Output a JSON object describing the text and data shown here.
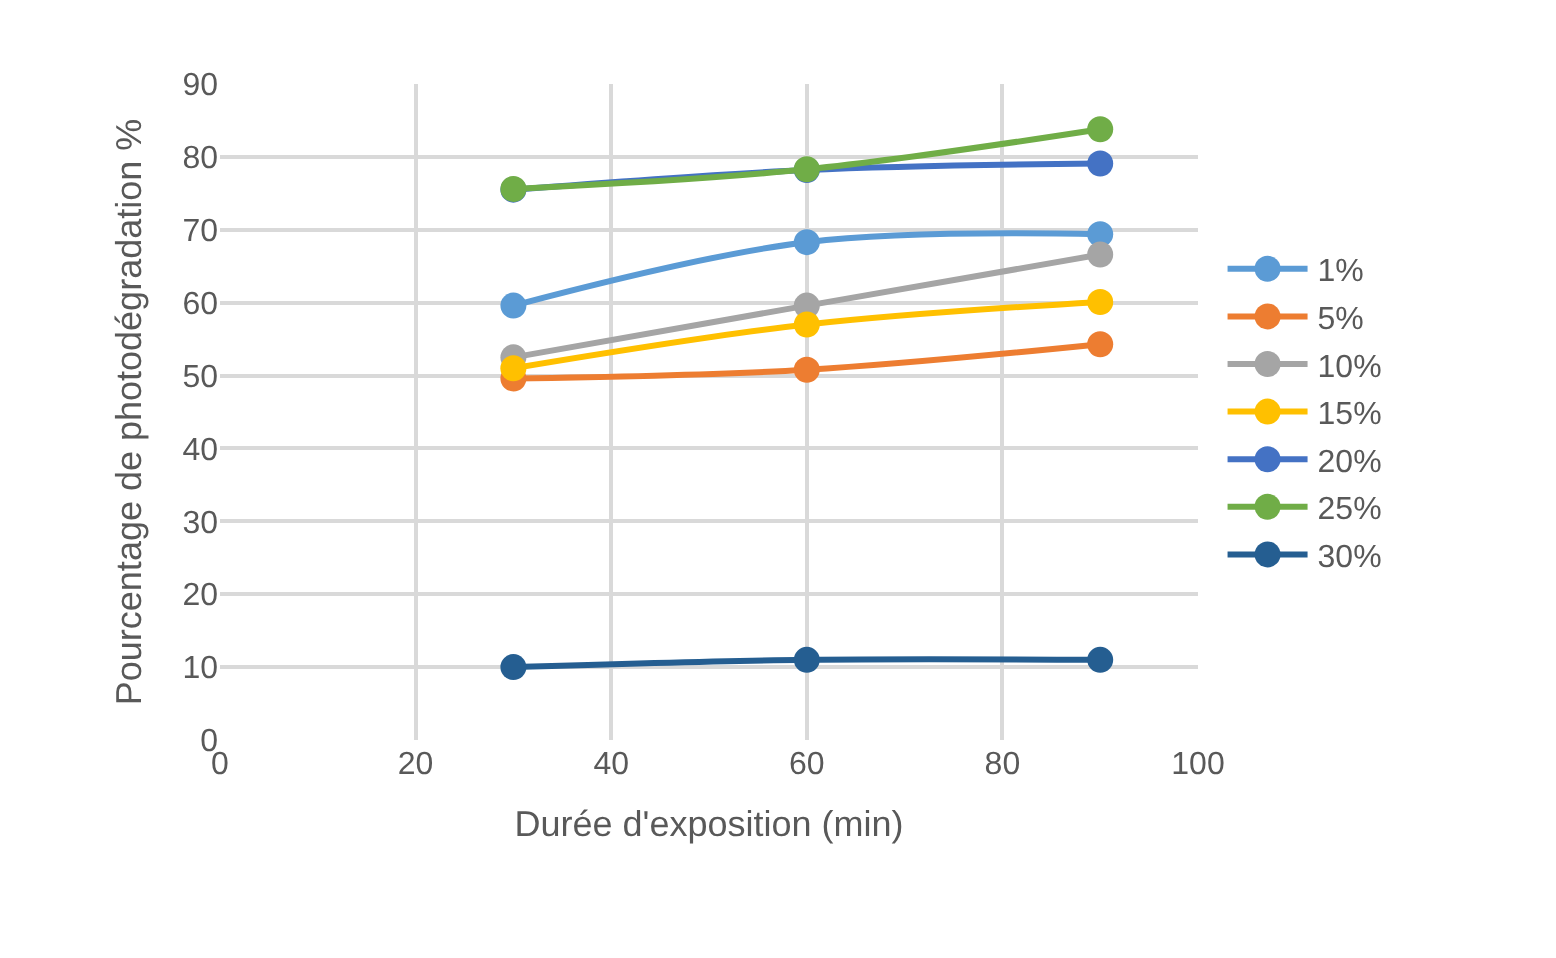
{
  "chart_data": {
    "type": "line",
    "xlabel": "Durée d'exposition (min)",
    "ylabel": "Pourcentage de photodégradation %",
    "x": [
      30,
      60,
      90
    ],
    "series": [
      {
        "name": "1%",
        "color": "#5b9bd5",
        "values": [
          59.6,
          68.3,
          69.4
        ]
      },
      {
        "name": "5%",
        "color": "#ed7d31",
        "values": [
          49.6,
          50.8,
          54.3
        ]
      },
      {
        "name": "10%",
        "color": "#a5a5a5",
        "values": [
          52.5,
          59.6,
          66.6
        ]
      },
      {
        "name": "15%",
        "color": "#ffc000",
        "values": [
          51,
          57,
          60.1
        ]
      },
      {
        "name": "20%",
        "color": "#4472c4",
        "values": [
          75.5,
          78.2,
          79.1
        ]
      },
      {
        "name": "25%",
        "color": "#70ad47",
        "values": [
          75.6,
          78.3,
          83.8
        ]
      },
      {
        "name": "30%",
        "color": "#255e91",
        "values": [
          10,
          11,
          11
        ]
      }
    ],
    "xlim": [
      0,
      100
    ],
    "xticks": [
      0,
      20,
      40,
      60,
      80,
      100
    ],
    "ylim": [
      0,
      90
    ],
    "yticks": [
      0,
      10,
      20,
      30,
      40,
      50,
      60,
      70,
      80,
      90
    ],
    "grid": true,
    "legend": "right",
    "marker": "circle",
    "line_style": "solid"
  }
}
